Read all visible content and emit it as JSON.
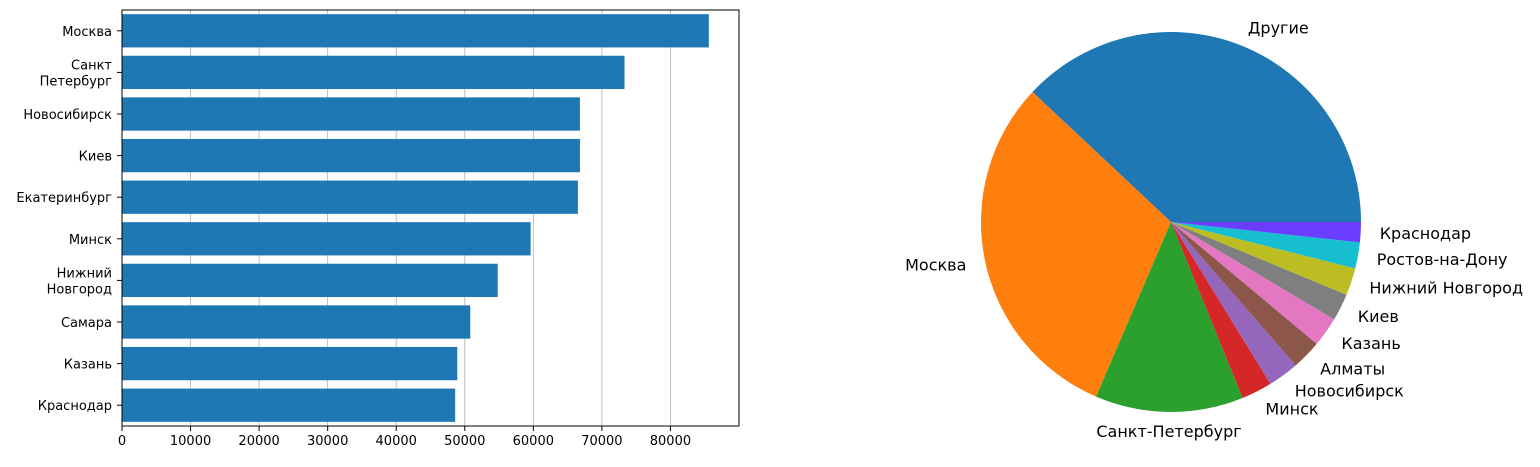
{
  "chart_data": [
    {
      "type": "bar",
      "orientation": "horizontal",
      "categories": [
        [
          "Москва"
        ],
        [
          "Санкт",
          "Петербург"
        ],
        [
          "Новосибирск"
        ],
        [
          "Киев"
        ],
        [
          "Екатеринбург"
        ],
        [
          "Минск"
        ],
        [
          "Нижний",
          "Новгород"
        ],
        [
          "Самара"
        ],
        [
          "Казань"
        ],
        [
          "Краснодар"
        ]
      ],
      "values": [
        85600,
        73300,
        66800,
        66800,
        66500,
        59600,
        54800,
        50800,
        48900,
        48600
      ],
      "xlim": [
        0,
        90000
      ],
      "xticks": [
        0,
        10000,
        20000,
        30000,
        40000,
        50000,
        60000,
        70000,
        80000
      ],
      "grid": "x",
      "color": "#1f77b4"
    },
    {
      "type": "pie",
      "labels": [
        "Другие",
        "Москва",
        "Санкт-Петербург",
        "Минск",
        "Новосибирск",
        "Алматы",
        "Казань",
        "Киев",
        "Нижний Новгород",
        "Ростов-на-Дону",
        "Краснодар"
      ],
      "values": [
        37.7,
        30.3,
        12.5,
        2.6,
        2.6,
        2.5,
        2.5,
        2.3,
        2.3,
        2.2,
        1.7
      ],
      "colors": [
        "#1f77b4",
        "#ff7f0e",
        "#2ca02c",
        "#d62728",
        "#9467bd",
        "#8c564b",
        "#e377c2",
        "#7f7f7f",
        "#bcbd22",
        "#17becf",
        "#6a3dff"
      ],
      "start_angle": 0,
      "direction": "counterclockwise"
    }
  ]
}
